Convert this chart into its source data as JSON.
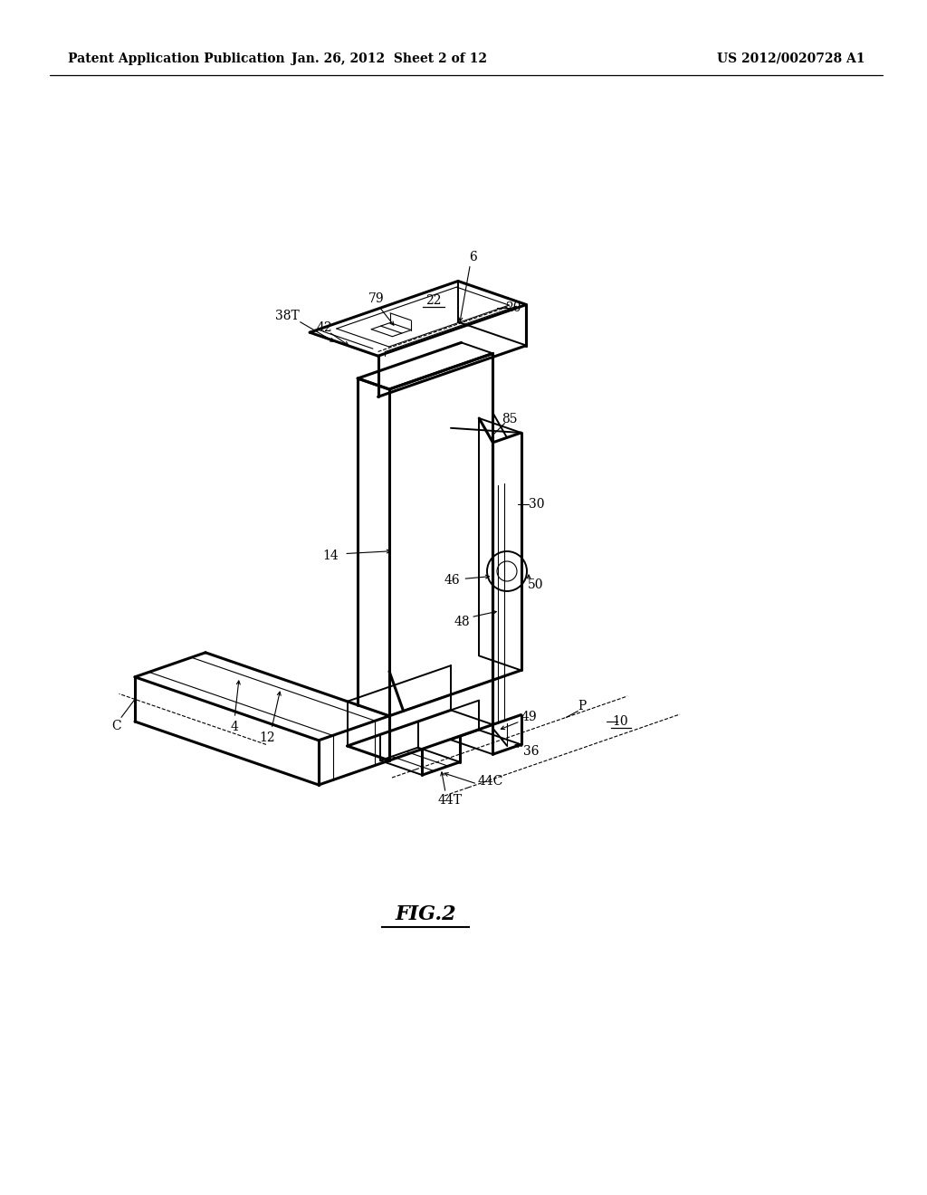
{
  "background_color": "#ffffff",
  "header_left": "Patent Application Publication",
  "header_center": "Jan. 26, 2012  Sheet 2 of 12",
  "header_right": "US 2012/0020728 A1",
  "figure_label": "FIG.2",
  "line_color": "#000000",
  "label_fontsize": 10,
  "header_fontsize": 10,
  "fig_label_fontsize": 16,
  "lw_thick": 2.2,
  "lw_med": 1.4,
  "lw_thin": 0.8
}
